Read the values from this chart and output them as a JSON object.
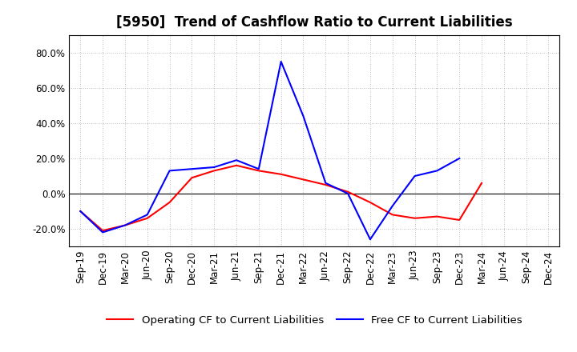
{
  "title": "[5950]  Trend of Cashflow Ratio to Current Liabilities",
  "x_labels": [
    "Sep-19",
    "Dec-19",
    "Mar-20",
    "Jun-20",
    "Sep-20",
    "Dec-20",
    "Mar-21",
    "Jun-21",
    "Sep-21",
    "Dec-21",
    "Mar-22",
    "Jun-22",
    "Sep-22",
    "Dec-22",
    "Mar-23",
    "Jun-23",
    "Sep-23",
    "Dec-23",
    "Mar-24",
    "Jun-24",
    "Sep-24",
    "Dec-24"
  ],
  "operating_cf": [
    -10.0,
    -21.0,
    -18.0,
    -14.0,
    -5.0,
    9.0,
    13.0,
    16.0,
    13.0,
    11.0,
    8.0,
    5.0,
    1.0,
    -5.0,
    -12.0,
    -14.0,
    -13.0,
    -15.0,
    6.0,
    null,
    null,
    null
  ],
  "free_cf": [
    -10.0,
    -22.0,
    -18.0,
    -12.0,
    13.0,
    14.0,
    15.0,
    19.0,
    14.0,
    75.0,
    44.0,
    6.0,
    0.0,
    -26.0,
    -7.0,
    10.0,
    13.0,
    20.0,
    null,
    null,
    null,
    null
  ],
  "ylim": [
    -30.0,
    90.0
  ],
  "yticks": [
    -20.0,
    0.0,
    20.0,
    40.0,
    60.0,
    80.0
  ],
  "operating_color": "#ff0000",
  "free_color": "#0000ff",
  "background_color": "#ffffff",
  "grid_color": "#aaaaaa",
  "title_fontsize": 12,
  "legend_fontsize": 9.5,
  "tick_fontsize": 8.5,
  "legend_label_op": "Operating CF to Current Liabilities",
  "legend_label_fr": "Free CF to Current Liabilities"
}
